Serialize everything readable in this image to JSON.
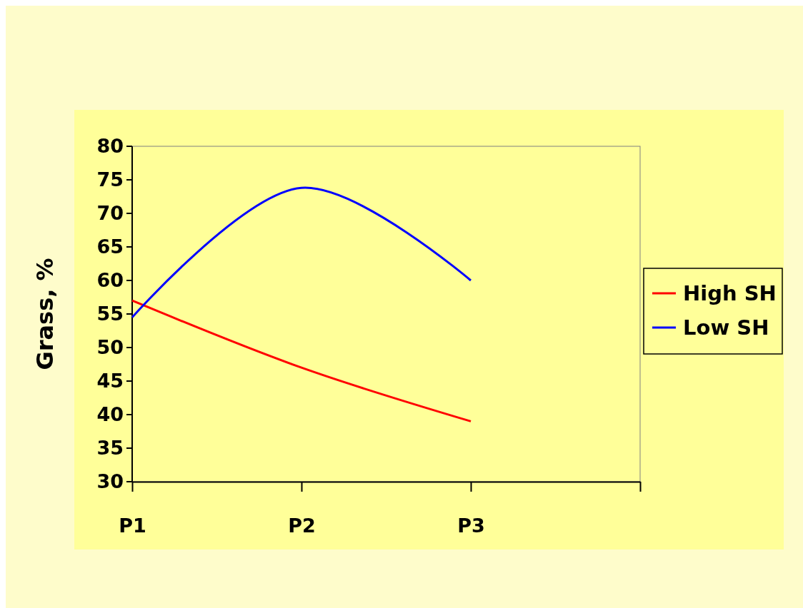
{
  "chart_data": {
    "type": "line",
    "ylabel": "Grass, %",
    "categories": [
      "P1",
      "P2",
      "P3",
      null
    ],
    "ylim": [
      30,
      80
    ],
    "yticks": [
      30,
      35,
      40,
      45,
      50,
      55,
      60,
      65,
      70,
      75,
      80
    ],
    "grid": false,
    "legend": "right",
    "marker": "none",
    "line_style": "solid",
    "series": [
      {
        "name": "High SH",
        "color": "#ff0000",
        "values": [
          57,
          47,
          39,
          null
        ]
      },
      {
        "name": "Low SH",
        "color": "#0000ff",
        "values": [
          54.5,
          73.8,
          60,
          null
        ]
      }
    ]
  }
}
